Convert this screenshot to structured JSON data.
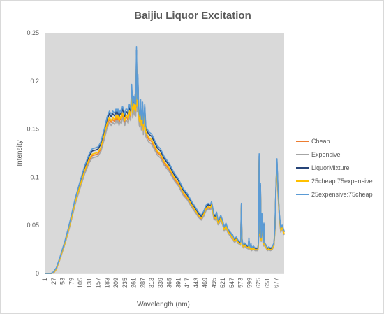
{
  "chart_data": {
    "type": "line",
    "title": "Baijiu Liquor Excitation",
    "xlabel": "Wavelength (nm)",
    "ylabel": "Intensity",
    "xlim": [
      1,
      700
    ],
    "ylim": [
      0,
      0.25
    ],
    "y_ticks": [
      "0",
      "0.05",
      "0.1",
      "0.15",
      "0.2",
      "0.25"
    ],
    "x_ticks": [
      "1",
      "27",
      "53",
      "79",
      "105",
      "131",
      "157",
      "183",
      "209",
      "235",
      "261",
      "287",
      "313",
      "339",
      "365",
      "391",
      "417",
      "443",
      "469",
      "495",
      "521",
      "547",
      "573",
      "599",
      "625",
      "651",
      "677"
    ],
    "x_tick_values": [
      1,
      27,
      53,
      79,
      105,
      131,
      157,
      183,
      209,
      235,
      261,
      287,
      313,
      339,
      365,
      391,
      417,
      443,
      469,
      495,
      521,
      547,
      573,
      599,
      625,
      651,
      677
    ],
    "grid": false,
    "plot_background": "#d9d9d9",
    "legend_position": "right",
    "base_series": {
      "x": [
        1,
        20,
        27,
        35,
        45,
        53,
        60,
        70,
        79,
        90,
        105,
        118,
        131,
        140,
        150,
        157,
        165,
        175,
        183,
        190,
        195,
        200,
        205,
        209,
        212,
        215,
        218,
        222,
        225,
        228,
        231,
        235,
        238,
        241,
        245,
        248,
        252,
        255,
        258,
        261,
        263,
        265,
        267,
        269,
        271,
        273,
        275,
        277,
        279,
        281,
        283,
        285,
        287,
        289,
        291,
        293,
        296,
        300,
        305,
        313,
        320,
        330,
        339,
        350,
        365,
        380,
        391,
        405,
        417,
        430,
        443,
        450,
        458,
        465,
        472,
        478,
        485,
        488,
        492,
        495,
        499,
        503,
        507,
        511,
        515,
        521,
        525,
        530,
        535,
        540,
        545,
        547,
        549,
        551,
        553,
        556,
        560,
        565,
        573,
        575,
        577,
        579,
        581,
        585,
        590,
        595,
        597,
        599,
        601,
        603,
        605,
        610,
        615,
        620,
        623,
        625,
        627,
        629,
        631,
        633,
        635,
        637,
        639,
        641,
        643,
        647,
        651,
        655,
        660,
        665,
        670,
        673,
        675,
        677,
        679,
        682,
        686,
        690,
        694,
        700
      ],
      "values": [
        0,
        0,
        0.001,
        0.005,
        0.015,
        0.024,
        0.032,
        0.045,
        0.058,
        0.075,
        0.093,
        0.108,
        0.12,
        0.125,
        0.126,
        0.127,
        0.132,
        0.145,
        0.157,
        0.163,
        0.16,
        0.163,
        0.161,
        0.165,
        0.162,
        0.165,
        0.16,
        0.164,
        0.162,
        0.168,
        0.165,
        0.16,
        0.165,
        0.165,
        0.162,
        0.17,
        0.165,
        0.19,
        0.168,
        0.178,
        0.171,
        0.18,
        0.17,
        0.228,
        0.175,
        0.2,
        0.17,
        0.16,
        0.158,
        0.175,
        0.155,
        0.16,
        0.172,
        0.15,
        0.16,
        0.17,
        0.148,
        0.145,
        0.142,
        0.14,
        0.135,
        0.128,
        0.125,
        0.117,
        0.11,
        0.1,
        0.095,
        0.085,
        0.08,
        0.072,
        0.065,
        0.061,
        0.058,
        0.062,
        0.068,
        0.07,
        0.069,
        0.072,
        0.065,
        0.059,
        0.058,
        0.061,
        0.053,
        0.055,
        0.058,
        0.052,
        0.046,
        0.05,
        0.045,
        0.042,
        0.04,
        0.038,
        0.039,
        0.037,
        0.035,
        0.034,
        0.036,
        0.033,
        0.031,
        0.07,
        0.035,
        0.03,
        0.028,
        0.03,
        0.028,
        0.027,
        0.035,
        0.028,
        0.026,
        0.03,
        0.025,
        0.027,
        0.025,
        0.025,
        0.025,
        0.03,
        0.12,
        0.04,
        0.09,
        0.035,
        0.06,
        0.04,
        0.03,
        0.05,
        0.03,
        0.028,
        0.025,
        0.026,
        0.025,
        0.026,
        0.03,
        0.045,
        0.075,
        0.098,
        0.115,
        0.085,
        0.06,
        0.045,
        0.048,
        0.042
      ]
    },
    "series": [
      {
        "name": "Cheap",
        "color": "#ed7d31",
        "scale": 0.985,
        "offset": -0.0007
      },
      {
        "name": "Expensive",
        "color": "#a5a5a5",
        "scale": 0.965,
        "offset": -0.0006
      },
      {
        "name": "LiquorMixture",
        "color": "#264478",
        "scale": 1.015,
        "offset": 0.0004
      },
      {
        "name": "25cheap:75expensive",
        "color": "#ffc000",
        "scale": 0.995,
        "offset": -0.0003
      },
      {
        "name": "25expensive:75cheap",
        "color": "#5b9bd5",
        "scale": 1.03,
        "offset": 0.0008
      }
    ]
  }
}
